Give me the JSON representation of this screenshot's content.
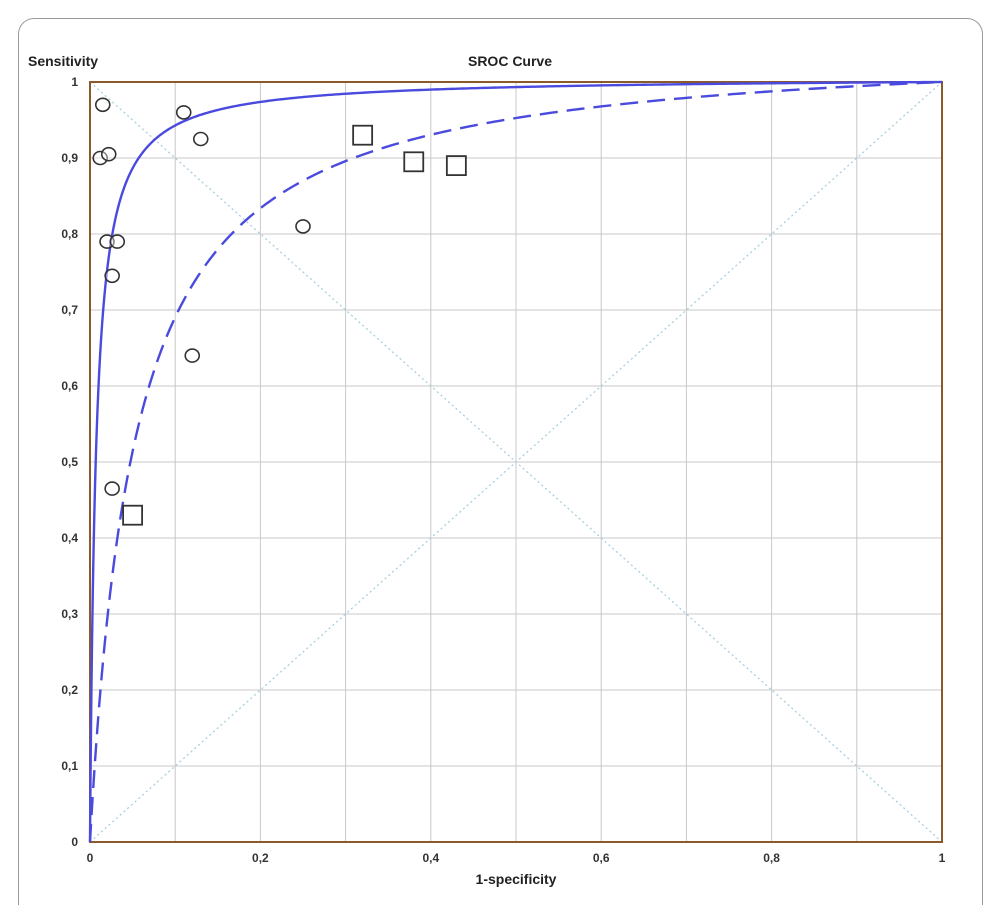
{
  "chart_data": {
    "type": "scatter",
    "title": "SROC Curve",
    "xlabel": "1-specificity",
    "ylabel": "Sensitivity",
    "xlim": [
      0,
      1
    ],
    "ylim": [
      0,
      1
    ],
    "grid": true,
    "x_ticks": [
      "0",
      "0,2",
      "0,4",
      "0,6",
      "0,8",
      "1"
    ],
    "y_ticks": [
      "0",
      "0,1",
      "0,2",
      "0,3",
      "0,4",
      "0,5",
      "0,6",
      "0,7",
      "0,8",
      "0,9",
      "1"
    ],
    "series": [
      {
        "marker": "circle",
        "points": [
          {
            "x": 0.015,
            "y": 0.97
          },
          {
            "x": 0.012,
            "y": 0.9
          },
          {
            "x": 0.022,
            "y": 0.905
          },
          {
            "x": 0.11,
            "y": 0.96
          },
          {
            "x": 0.13,
            "y": 0.925
          },
          {
            "x": 0.02,
            "y": 0.79
          },
          {
            "x": 0.032,
            "y": 0.79
          },
          {
            "x": 0.026,
            "y": 0.745
          },
          {
            "x": 0.12,
            "y": 0.64
          },
          {
            "x": 0.25,
            "y": 0.81
          },
          {
            "x": 0.026,
            "y": 0.465
          }
        ]
      },
      {
        "marker": "square",
        "points": [
          {
            "x": 0.05,
            "y": 0.43
          },
          {
            "x": 0.32,
            "y": 0.93
          },
          {
            "x": 0.38,
            "y": 0.895
          },
          {
            "x": 0.43,
            "y": 0.89
          }
        ]
      },
      {
        "line_style": "solid",
        "color": "#4a4adf",
        "curve": "sroc",
        "alpha": 5.0
      },
      {
        "line_style": "dashed",
        "color": "#4a4adf",
        "curve": "sroc",
        "alpha": 3.0
      }
    ],
    "colors": {
      "curve": "#4a4adf",
      "grid": "#c8c8c8",
      "diagonal": "#a8cfe0",
      "axes": "#8a5a2a",
      "markers": "#333333"
    }
  }
}
